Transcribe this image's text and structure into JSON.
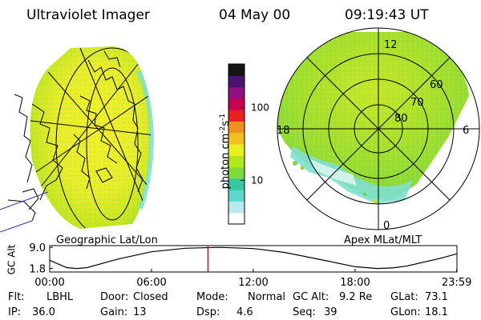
{
  "header": {
    "instrument": "Ultraviolet Imager",
    "date": "04 May 00",
    "time": "09:19:43 UT"
  },
  "left_panel": {
    "label": "Geographic Lat/Lon"
  },
  "right_panel": {
    "label": "Apex MLat/MLT",
    "mlt_labels": {
      "top": "12",
      "left": "18",
      "right": "6",
      "bottom": "0"
    },
    "lat_labels": [
      "60",
      "70",
      "80"
    ]
  },
  "colorbar": {
    "unit_text": "photon cm",
    "unit_sup_1": "-2",
    "unit_mid": "s",
    "unit_sup_2": "-1",
    "ticks": [
      "100",
      "10"
    ],
    "tick_values": [
      100,
      10
    ],
    "range": [
      2.5,
      400
    ],
    "scale": "log",
    "colors": [
      "#ffffff",
      "#b8ecec",
      "#5fd7cf",
      "#36c8a0",
      "#7ddb3c",
      "#b4e61e",
      "#e8f020",
      "#f0c020",
      "#f09020",
      "#e82020",
      "#c80050",
      "#901080",
      "#4a1470",
      "#141414"
    ]
  },
  "altitude_plot": {
    "ylabel": "GC Alt",
    "yticks": [
      "9.0",
      "1.8"
    ],
    "ytick_values": [
      9.0,
      1.8
    ],
    "xticks": [
      "00:00",
      "06:00",
      "12:00",
      "18:00",
      "23:59"
    ],
    "xtick_hours": [
      0,
      6,
      12,
      18,
      23.983
    ],
    "current_hour": 9.33,
    "series_hours": [
      0,
      1,
      1.6,
      2.2,
      4,
      6,
      8,
      10,
      12,
      13.8,
      16,
      18,
      19.3,
      20.2,
      21,
      23,
      23.983
    ],
    "series_alt": [
      4.6,
      2.1,
      1.8,
      2.1,
      5.0,
      7.5,
      8.7,
      9.0,
      8.6,
      7.3,
      4.8,
      2.4,
      1.8,
      2.0,
      2.6,
      5.2,
      6.8
    ],
    "current_marker_color": "#dd0000"
  },
  "footer": [
    [
      {
        "label": "Flt:",
        "value": "LBHL"
      },
      {
        "label": "Door:",
        "value": "Closed"
      },
      {
        "label": "Mode:",
        "value": "Normal"
      },
      {
        "label": "GC Alt:",
        "value": "9.2 Re"
      },
      {
        "label": "GLat:",
        "value": "73.1"
      }
    ],
    [
      {
        "label": "IP:",
        "value": "36.0"
      },
      {
        "label": "Gain:",
        "value": "13"
      },
      {
        "label": "Dsp:",
        "value": "4.6"
      },
      {
        "label": "Seq:",
        "value": "39"
      },
      {
        "label": "GLon:",
        "value": "18.1"
      }
    ]
  ]
}
